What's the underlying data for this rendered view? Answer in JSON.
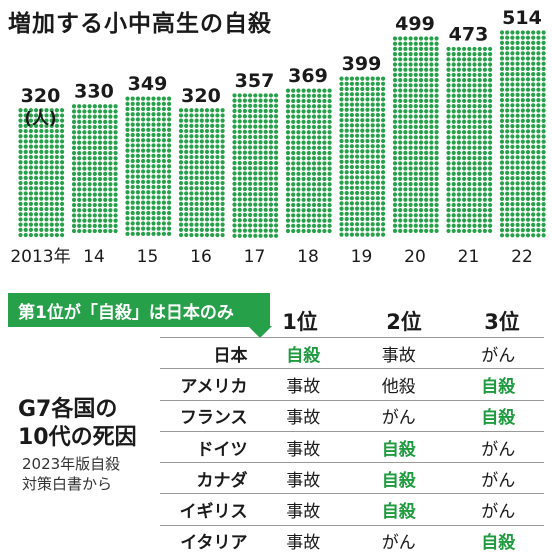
{
  "title": "増加する小中高生の自殺",
  "unit_label": "(人)",
  "colors": {
    "bar": "#27a04a",
    "highlight_text": "#1e9a3f",
    "callout_bg": "#27a04a"
  },
  "chart_data": {
    "type": "bar",
    "title": "増加する小中高生の自殺",
    "unit": "人",
    "categories": [
      "2013年",
      "14",
      "15",
      "16",
      "17",
      "18",
      "19",
      "20",
      "21",
      "22"
    ],
    "values": [
      320,
      330,
      349,
      320,
      357,
      369,
      399,
      499,
      473,
      514
    ],
    "ylim": [
      0,
      514
    ],
    "grid": false,
    "legend": "none"
  },
  "callout": "第1位が「自殺」は日本のみ",
  "g7": {
    "title_lines": [
      "G7各国の",
      "10代の死因"
    ],
    "source_lines": [
      "2023年版自殺",
      "対策白書から"
    ],
    "headers": [
      "1位",
      "2位",
      "3位"
    ],
    "rows": [
      {
        "country": "日本",
        "ranks": [
          "自殺",
          "事故",
          "がん"
        ]
      },
      {
        "country": "アメリカ",
        "ranks": [
          "事故",
          "他殺",
          "自殺"
        ]
      },
      {
        "country": "フランス",
        "ranks": [
          "事故",
          "がん",
          "自殺"
        ]
      },
      {
        "country": "ドイツ",
        "ranks": [
          "事故",
          "自殺",
          "がん"
        ]
      },
      {
        "country": "カナダ",
        "ranks": [
          "事故",
          "自殺",
          "がん"
        ]
      },
      {
        "country": "イギリス",
        "ranks": [
          "事故",
          "自殺",
          "がん"
        ]
      },
      {
        "country": "イタリア",
        "ranks": [
          "事故",
          "がん",
          "自殺"
        ]
      }
    ],
    "highlight_term": "自殺"
  }
}
